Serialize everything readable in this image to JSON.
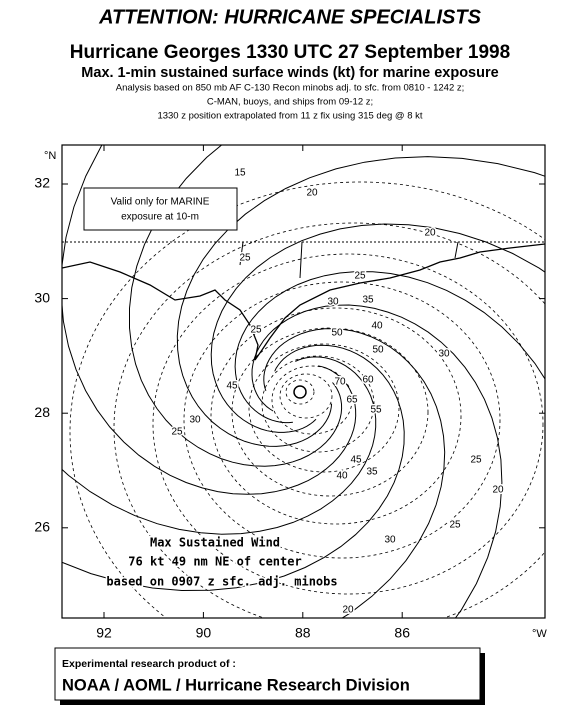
{
  "header": {
    "title": "ATTENTION: HURRICANE SPECIALISTS",
    "subtitle": "Hurricane Georges 1330 UTC 27 September 1998",
    "subtitle2": "Max. 1-min sustained surface winds (kt) for marine exposure",
    "notes": [
      "Analysis based on 850 mb AF C-130 Recon minobs adj. to sfc. from 0810 - 1242 z;",
      "C-MAN, buoys, and ships from 09-12 z;",
      "1330 z position extrapolated from 11 z fix using 315 deg @ 8 kt"
    ]
  },
  "map": {
    "lat_unit": "°N",
    "lon_unit": "°W",
    "lat_labels": [
      32,
      30,
      28,
      26
    ],
    "lon_labels": [
      92,
      90,
      88,
      86
    ],
    "validity_note": [
      "Valid only for MARINE",
      "exposure at 10-m"
    ],
    "max_wind": [
      "Max Sustained Wind",
      "76 kt  49 nm NE of center",
      "based on 0907 z sfc. adj. minobs"
    ],
    "contour_labels": [
      15,
      20,
      25,
      20,
      25,
      35,
      30,
      25,
      40,
      50,
      50,
      30,
      60,
      45,
      70,
      65,
      55,
      30,
      45,
      40,
      25,
      35,
      25,
      30,
      20,
      25,
      20
    ]
  },
  "footer": {
    "line1": "Experimental research product of :",
    "line2": "NOAA / AOML / Hurricane Research Division"
  }
}
